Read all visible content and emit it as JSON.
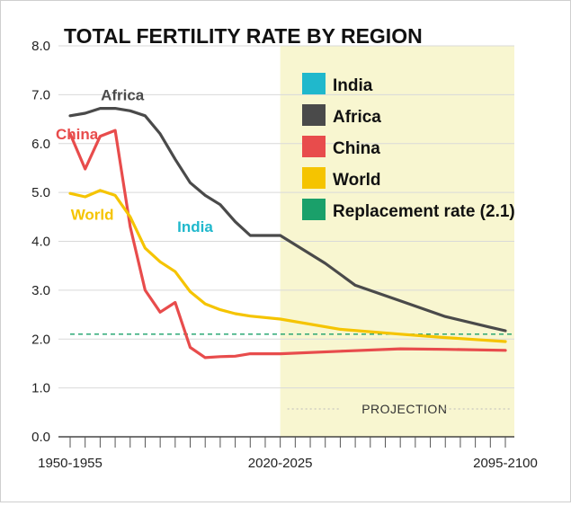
{
  "chart_data": {
    "type": "line",
    "title": "TOTAL FERTILITY RATE BY REGION",
    "xlabel": "",
    "ylabel": "",
    "ylim": [
      0,
      8
    ],
    "yticks": [
      "0.0",
      "1.0",
      "2.0",
      "3.0",
      "4.0",
      "5.0",
      "6.0",
      "7.0",
      "8.0"
    ],
    "xtick_labels": [
      {
        "period_index": 0,
        "label": "1950-1955"
      },
      {
        "period_index": 14,
        "label": "2020-2025"
      },
      {
        "period_index": 29,
        "label": "2095-2100"
      }
    ],
    "period_count": 30,
    "projection": {
      "start_period_index": 14,
      "label": "PROJECTION",
      "color": "#f8f6d0"
    },
    "replacement_rate": {
      "value": 2.1,
      "label": "Replacement rate (2.1)",
      "color": "#1aa06a"
    },
    "legend_position": "top-right",
    "legend": [
      {
        "label": "India",
        "color": "#20b8cc"
      },
      {
        "label": "Africa",
        "color": "#4a4a4a"
      },
      {
        "label": "China",
        "color": "#e84c4c"
      },
      {
        "label": "World",
        "color": "#f5c400"
      },
      {
        "label": "Replacement rate (2.1)",
        "color": "#1aa06a"
      }
    ],
    "series": [
      {
        "name": "Africa",
        "color": "#4a4a4a",
        "label_period": 3,
        "label_value": 7.0,
        "values": [
          {
            "i": 0,
            "v": 6.57
          },
          {
            "i": 1,
            "v": 6.62
          },
          {
            "i": 2,
            "v": 6.72
          },
          {
            "i": 3,
            "v": 6.72
          },
          {
            "i": 4,
            "v": 6.67
          },
          {
            "i": 5,
            "v": 6.57
          },
          {
            "i": 6,
            "v": 6.2
          },
          {
            "i": 7,
            "v": 5.68
          },
          {
            "i": 8,
            "v": 5.2
          },
          {
            "i": 9,
            "v": 4.94
          },
          {
            "i": 10,
            "v": 4.75
          },
          {
            "i": 11,
            "v": 4.4
          },
          {
            "i": 12,
            "v": 4.12
          },
          {
            "i": 14,
            "v": 4.12
          },
          {
            "i": 17,
            "v": 3.55
          },
          {
            "i": 19,
            "v": 3.1
          },
          {
            "i": 22,
            "v": 2.78
          },
          {
            "i": 25,
            "v": 2.46
          },
          {
            "i": 28,
            "v": 2.24
          },
          {
            "i": 29,
            "v": 2.17
          }
        ]
      },
      {
        "name": "China",
        "color": "#e84c4c",
        "label_period": 0,
        "label_value": 6.2,
        "values": [
          {
            "i": 0,
            "v": 6.2
          },
          {
            "i": 1,
            "v": 5.48
          },
          {
            "i": 2,
            "v": 6.15
          },
          {
            "i": 3,
            "v": 6.27
          },
          {
            "i": 4,
            "v": 4.3
          },
          {
            "i": 5,
            "v": 3.0
          },
          {
            "i": 6,
            "v": 2.55
          },
          {
            "i": 7,
            "v": 2.75
          },
          {
            "i": 8,
            "v": 1.83
          },
          {
            "i": 9,
            "v": 1.62
          },
          {
            "i": 10,
            "v": 1.64
          },
          {
            "i": 11,
            "v": 1.65
          },
          {
            "i": 12,
            "v": 1.7
          },
          {
            "i": 14,
            "v": 1.7
          },
          {
            "i": 18,
            "v": 1.75
          },
          {
            "i": 22,
            "v": 1.8
          },
          {
            "i": 25,
            "v": 1.79
          },
          {
            "i": 29,
            "v": 1.77
          }
        ]
      },
      {
        "name": "World",
        "color": "#f5c400",
        "label_period": 1,
        "label_value": 4.55,
        "values": [
          {
            "i": 0,
            "v": 4.98
          },
          {
            "i": 1,
            "v": 4.91
          },
          {
            "i": 2,
            "v": 5.04
          },
          {
            "i": 3,
            "v": 4.94
          },
          {
            "i": 4,
            "v": 4.5
          },
          {
            "i": 5,
            "v": 3.86
          },
          {
            "i": 6,
            "v": 3.58
          },
          {
            "i": 7,
            "v": 3.38
          },
          {
            "i": 8,
            "v": 2.97
          },
          {
            "i": 9,
            "v": 2.72
          },
          {
            "i": 10,
            "v": 2.6
          },
          {
            "i": 11,
            "v": 2.52
          },
          {
            "i": 12,
            "v": 2.47
          },
          {
            "i": 14,
            "v": 2.41
          },
          {
            "i": 18,
            "v": 2.2
          },
          {
            "i": 22,
            "v": 2.1
          },
          {
            "i": 25,
            "v": 2.03
          },
          {
            "i": 29,
            "v": 1.95
          }
        ]
      },
      {
        "name": "India",
        "color": "#20b8cc",
        "label_period": 8.1,
        "label_value": 4.3,
        "values": []
      }
    ]
  }
}
